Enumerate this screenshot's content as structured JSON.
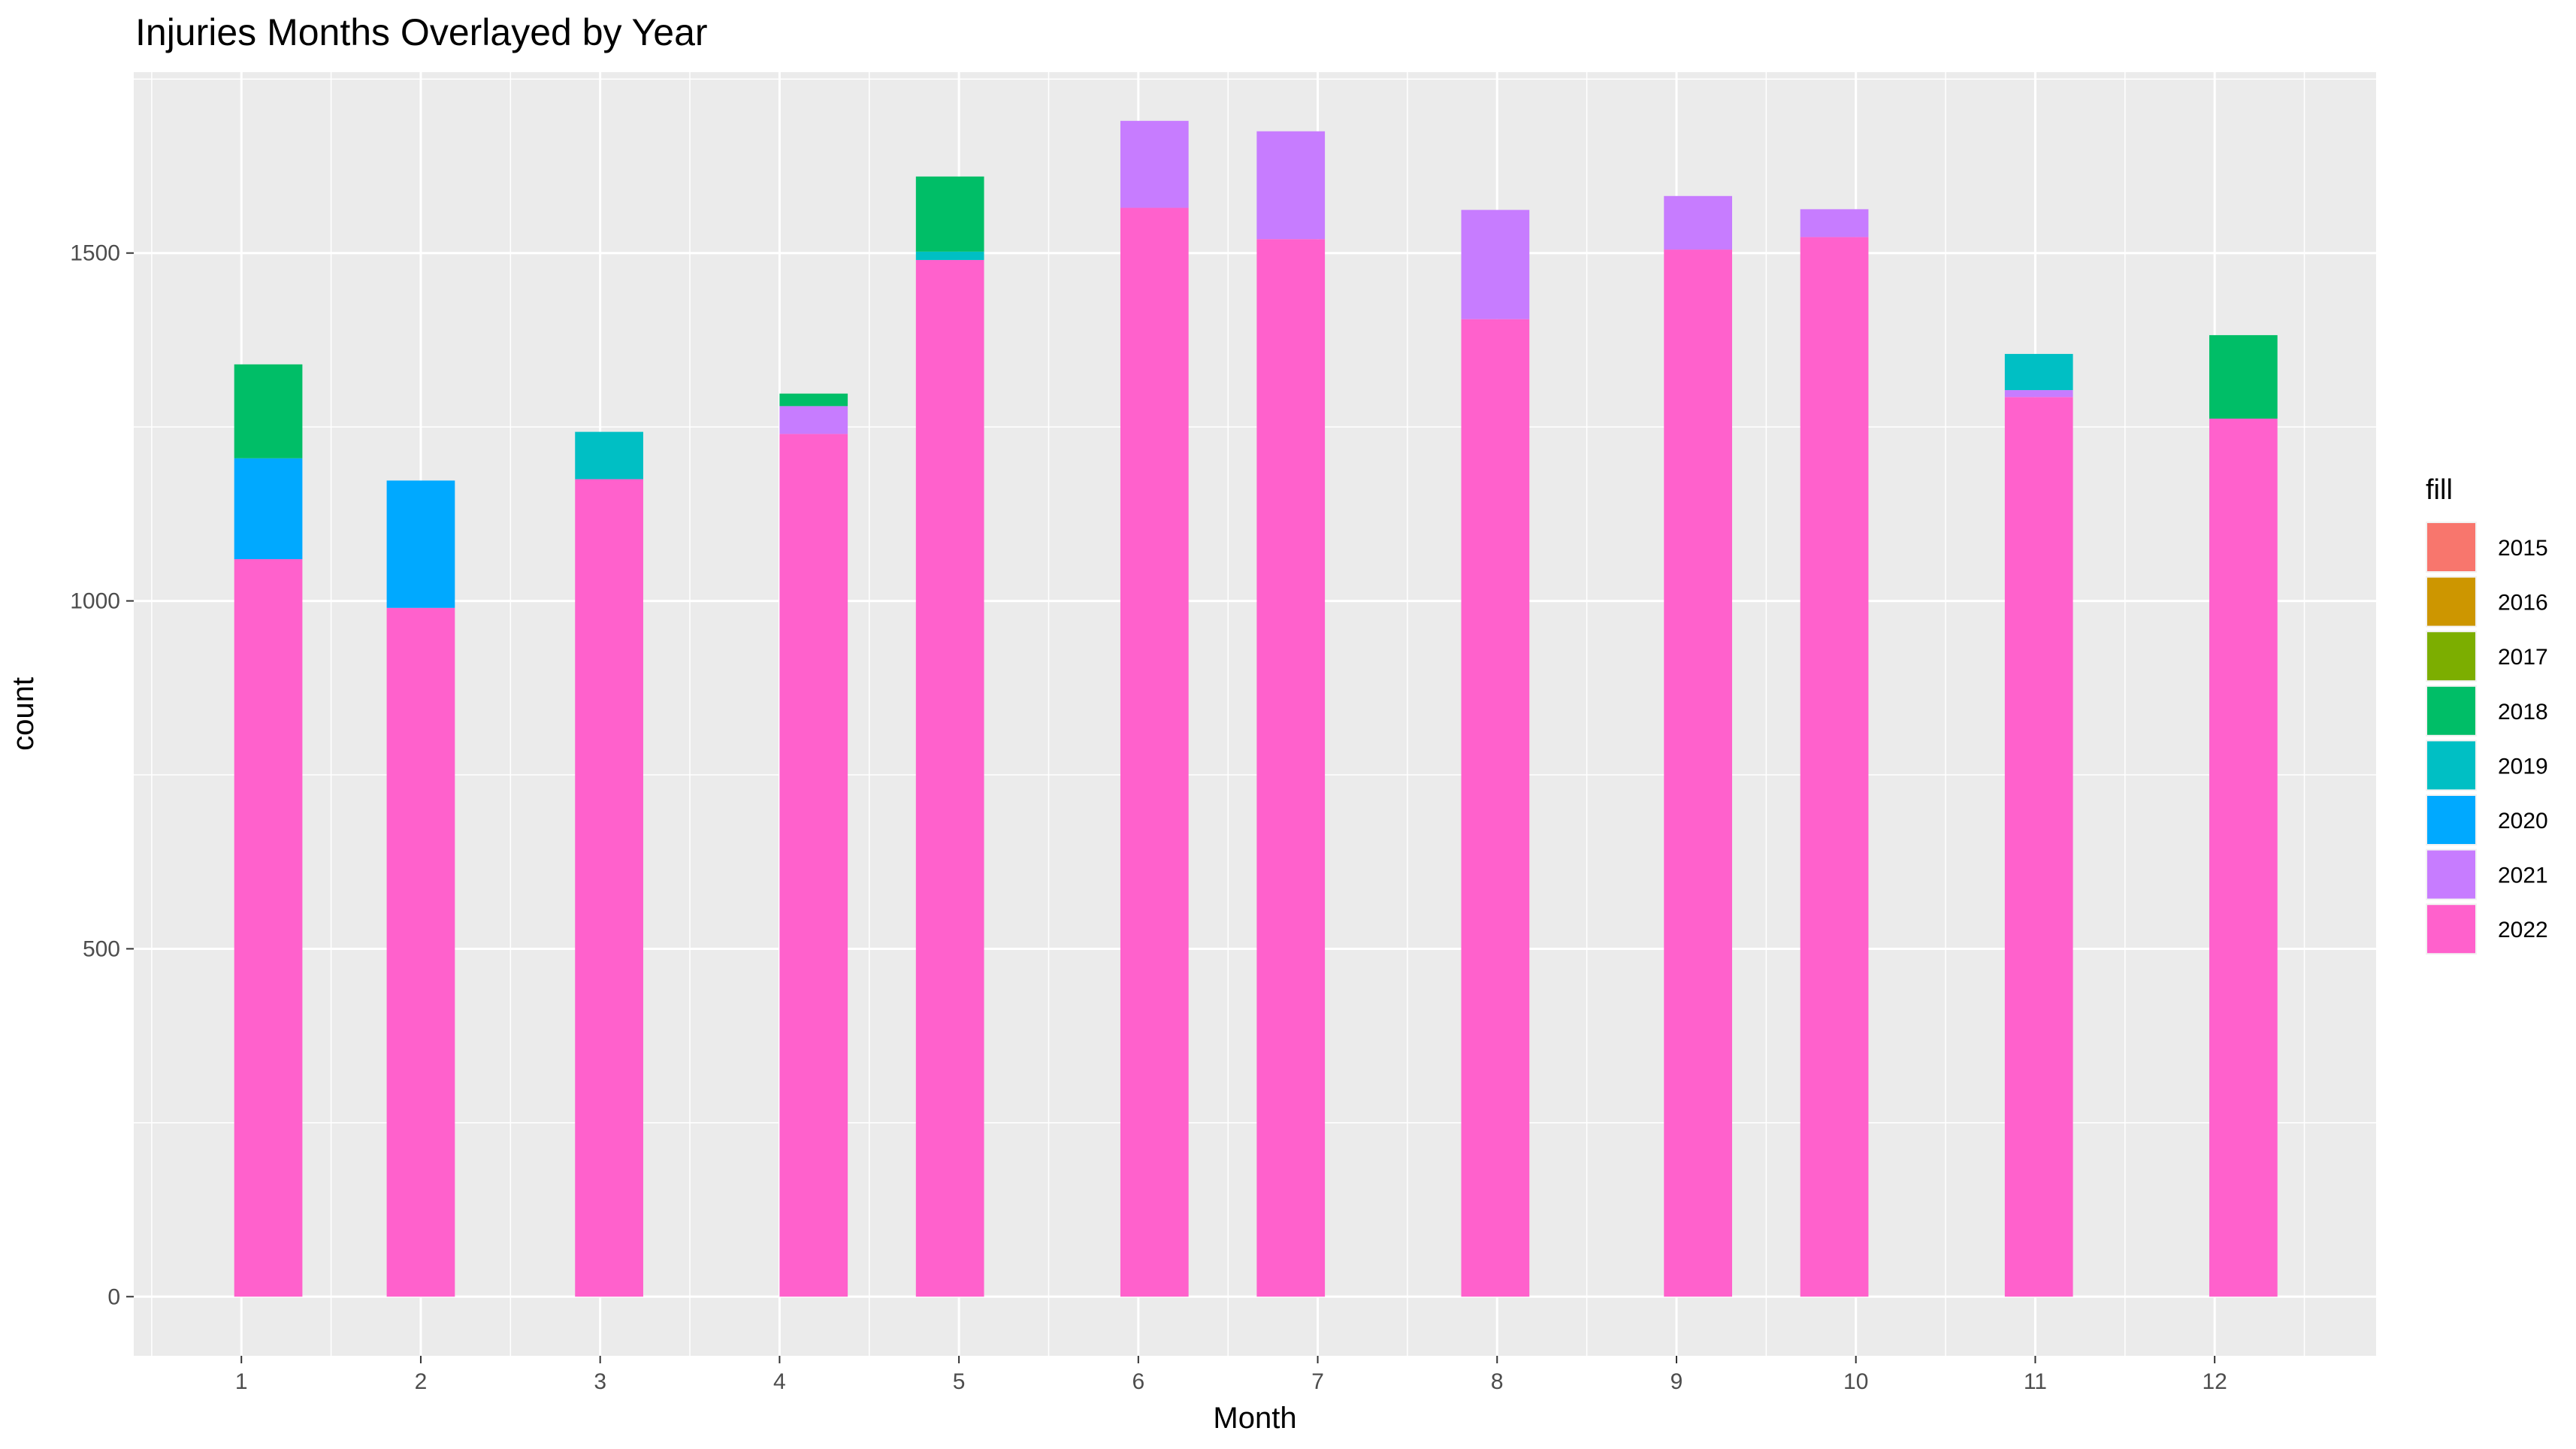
{
  "chart_data": {
    "type": "bar",
    "title": "Injuries Months Overlayed by Year",
    "xlabel": "Month",
    "ylabel": "count",
    "categories": [
      "1",
      "2",
      "3",
      "4",
      "5",
      "6",
      "7",
      "8",
      "9",
      "10",
      "11",
      "12"
    ],
    "ylim": [
      -85,
      1760
    ],
    "yticks": [
      0,
      500,
      1000,
      1500
    ],
    "grid": true,
    "legend": {
      "title": "fill",
      "position": "right",
      "entries": [
        {
          "label": "2015",
          "color": "#F8766D"
        },
        {
          "label": "2016",
          "color": "#CD9600"
        },
        {
          "label": "2017",
          "color": "#7CAE00"
        },
        {
          "label": "2018",
          "color": "#00BE67"
        },
        {
          "label": "2019",
          "color": "#00BFC4"
        },
        {
          "label": "2020",
          "color": "#00A9FF"
        },
        {
          "label": "2021",
          "color": "#C77CFF"
        },
        {
          "label": "2022",
          "color": "#FF61CC"
        }
      ]
    },
    "bars": [
      {
        "month": 1,
        "x": 1.15,
        "segments": [
          {
            "year": "2022",
            "value": 1060
          },
          {
            "year": "2020",
            "value": 145
          },
          {
            "year": "2018",
            "value": 135
          }
        ]
      },
      {
        "month": 2,
        "x": 2.0,
        "segments": [
          {
            "year": "2022",
            "value": 990
          },
          {
            "year": "2020",
            "value": 183
          }
        ]
      },
      {
        "month": 3,
        "x": 3.05,
        "segments": [
          {
            "year": "2022",
            "value": 1175
          },
          {
            "year": "2019",
            "value": 68
          }
        ]
      },
      {
        "month": 4,
        "x": 4.19,
        "segments": [
          {
            "year": "2022",
            "value": 1240
          },
          {
            "year": "2021",
            "value": 40
          },
          {
            "year": "2018",
            "value": 18
          }
        ]
      },
      {
        "month": 5,
        "x": 4.95,
        "segments": [
          {
            "year": "2022",
            "value": 1490
          },
          {
            "year": "2019",
            "value": 12
          },
          {
            "year": "2018",
            "value": 108
          }
        ]
      },
      {
        "month": 6,
        "x": 6.09,
        "segments": [
          {
            "year": "2022",
            "value": 1565
          },
          {
            "year": "2021",
            "value": 125
          }
        ]
      },
      {
        "month": 7,
        "x": 6.85,
        "segments": [
          {
            "year": "2022",
            "value": 1520
          },
          {
            "year": "2021",
            "value": 155
          }
        ]
      },
      {
        "month": 8,
        "x": 7.99,
        "segments": [
          {
            "year": "2022",
            "value": 1405
          },
          {
            "year": "2021",
            "value": 157
          }
        ]
      },
      {
        "month": 9,
        "x": 9.12,
        "segments": [
          {
            "year": "2022",
            "value": 1505
          },
          {
            "year": "2021",
            "value": 77
          }
        ]
      },
      {
        "month": 10,
        "x": 9.88,
        "segments": [
          {
            "year": "2022",
            "value": 1523
          },
          {
            "year": "2021",
            "value": 40
          }
        ]
      },
      {
        "month": 11,
        "x": 11.02,
        "segments": [
          {
            "year": "2022",
            "value": 1293
          },
          {
            "year": "2021",
            "value": 10
          },
          {
            "year": "2019",
            "value": 52
          }
        ]
      },
      {
        "month": 12,
        "x": 12.16,
        "segments": [
          {
            "year": "2022",
            "value": 1262
          },
          {
            "year": "2018",
            "value": 120
          }
        ]
      }
    ]
  }
}
